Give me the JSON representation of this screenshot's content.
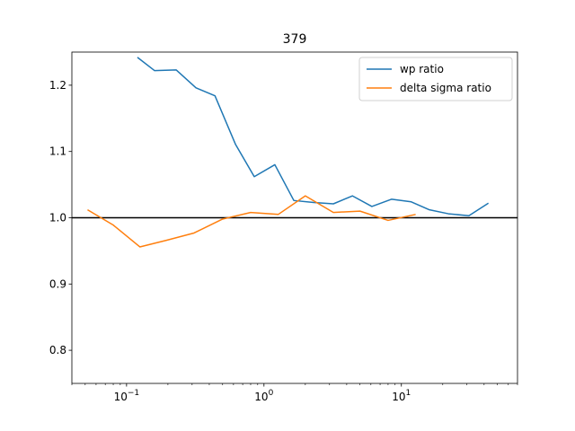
{
  "chart_data": {
    "type": "line",
    "title": "379",
    "xlabel": "",
    "ylabel": "",
    "xscale": "log",
    "xlim": [
      0.04,
      70
    ],
    "ylim": [
      0.75,
      1.25
    ],
    "xticks": [
      {
        "value": 0.1,
        "base": "10",
        "exp": "−1"
      },
      {
        "value": 1,
        "base": "10",
        "exp": "0"
      },
      {
        "value": 10,
        "base": "10",
        "exp": "1"
      }
    ],
    "yticks": [
      {
        "value": 0.8,
        "label": "0.8"
      },
      {
        "value": 0.9,
        "label": "0.9"
      },
      {
        "value": 1.0,
        "label": "1.0"
      },
      {
        "value": 1.1,
        "label": "1.1"
      },
      {
        "value": 1.2,
        "label": "1.2"
      }
    ],
    "reference_line": {
      "y": 1.0,
      "color": "#000000"
    },
    "legend_position": "top-right",
    "grid": false,
    "series": [
      {
        "name": "wp ratio",
        "color": "#1f77b4",
        "x": [
          0.12,
          0.16,
          0.23,
          0.32,
          0.44,
          0.62,
          0.85,
          1.2,
          1.65,
          2.3,
          3.2,
          4.4,
          6.1,
          8.5,
          11.8,
          16,
          22,
          31,
          43
        ],
        "y": [
          1.242,
          1.222,
          1.223,
          1.196,
          1.184,
          1.111,
          1.062,
          1.08,
          1.026,
          1.023,
          1.021,
          1.033,
          1.017,
          1.028,
          1.024,
          1.012,
          1.006,
          1.003,
          1.022
        ]
      },
      {
        "name": "delta sigma ratio",
        "color": "#ff7f0e",
        "x": [
          0.052,
          0.08,
          0.125,
          0.195,
          0.31,
          0.5,
          0.8,
          1.27,
          2.0,
          3.2,
          5.0,
          8.0,
          12.7
        ],
        "y": [
          1.012,
          0.989,
          0.956,
          0.966,
          0.977,
          0.998,
          1.008,
          1.005,
          1.033,
          1.008,
          1.01,
          0.996,
          1.005
        ]
      }
    ]
  }
}
